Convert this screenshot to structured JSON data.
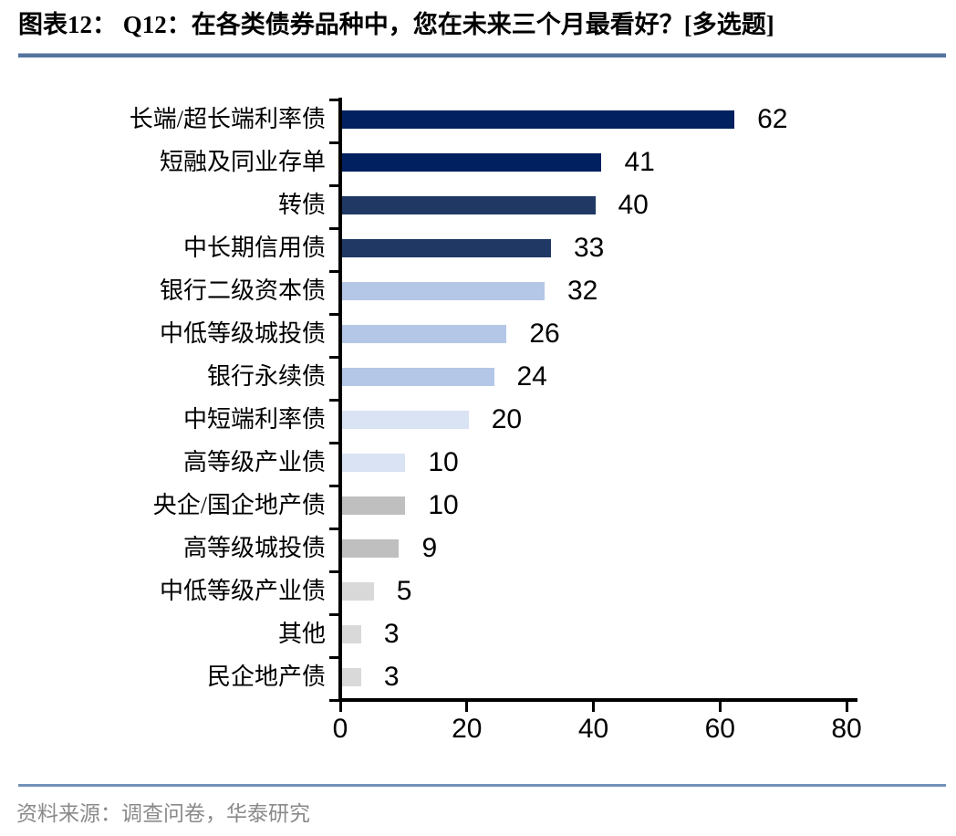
{
  "header": {
    "title": "图表12： Q12：在各类债券品种中，您在未来三个月最看好？[多选题]"
  },
  "footer": {
    "source": "资料来源：调查问卷，华泰研究"
  },
  "colors": {
    "title_underline_main": "#54749E",
    "title_underline_light": "#A3B8D4",
    "source_divider": "#7492B8",
    "source_text": "#8A8A8A",
    "axis": "#000000",
    "dark_navy": "#002060",
    "navy": "#1F3864",
    "light_blue": "#B4C7E7",
    "pale_blue": "#DAE3F3",
    "gray": "#BFBFBF",
    "light_gray": "#D9D9D9"
  },
  "chart_data": {
    "type": "bar",
    "orientation": "horizontal",
    "title": "图表12： Q12：在各类债券品种中，您在未来三个月最看好？[多选题]",
    "categories": [
      "长端/超长端利率债",
      "短融及同业存单",
      "转债",
      "中长期信用债",
      "银行二级资本债",
      "中低等级城投债",
      "银行永续债",
      "中短端利率债",
      "高等级产业债",
      "央企/国企地产债",
      "高等级城投债",
      "中低等级产业债",
      "其他",
      "民企地产债"
    ],
    "values": [
      62,
      41,
      40,
      33,
      32,
      26,
      24,
      20,
      10,
      10,
      9,
      5,
      3,
      3
    ],
    "bar_colors": [
      "#002060",
      "#002060",
      "#1F3864",
      "#1F3864",
      "#B4C7E7",
      "#B4C7E7",
      "#B4C7E7",
      "#DAE3F3",
      "#DAE3F3",
      "#BFBFBF",
      "#BFBFBF",
      "#D9D9D9",
      "#D9D9D9",
      "#D9D9D9"
    ],
    "xlabel": "",
    "ylabel": "",
    "xlim": [
      0,
      80
    ],
    "x_ticks": [
      0,
      20,
      40,
      60,
      80
    ],
    "grid": false,
    "legend": false,
    "value_labels": true
  }
}
